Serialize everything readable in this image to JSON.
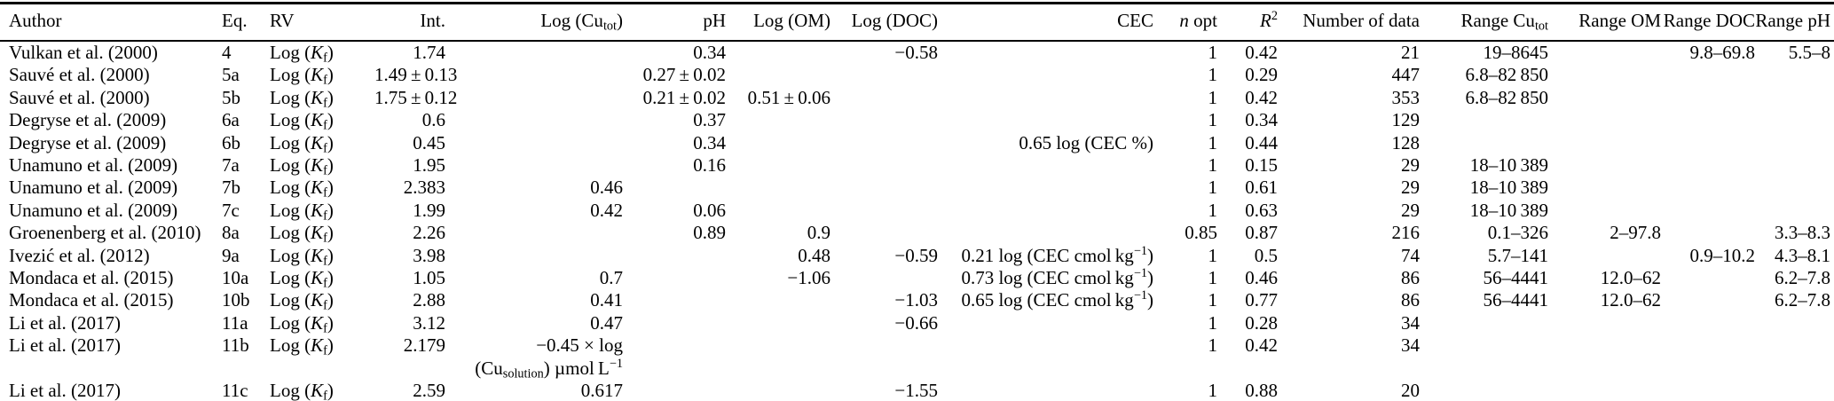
{
  "note_on_markup": "In label/cell strings: *x* = italic, ~x~ = subscript, ^x^ = superscript",
  "table": {
    "columns": [
      {
        "key": "author",
        "label": "Author"
      },
      {
        "key": "eq",
        "label": "Eq."
      },
      {
        "key": "rv",
        "label": "RV"
      },
      {
        "key": "int",
        "label": "Int."
      },
      {
        "key": "log_cutot",
        "label": "Log (Cu~tot~)"
      },
      {
        "key": "ph",
        "label": "pH"
      },
      {
        "key": "log_om",
        "label": "Log (OM)"
      },
      {
        "key": "log_doc",
        "label": "Log (DOC)"
      },
      {
        "key": "cec",
        "label": "CEC"
      },
      {
        "key": "n_opt",
        "label": "*n* opt"
      },
      {
        "key": "r2",
        "label": "*R*^2^"
      },
      {
        "key": "n_data",
        "label": "Number of data"
      },
      {
        "key": "range_cutot",
        "label": "Range Cu~tot~"
      },
      {
        "key": "range_om",
        "label": "Range OM"
      },
      {
        "key": "range_doc",
        "label": "Range DOC"
      },
      {
        "key": "range_ph",
        "label": "Range pH"
      }
    ],
    "rows": [
      {
        "cells": [
          "Vulkan et al. (2000)",
          "4",
          "Log (*K*~f~)",
          "1.74",
          "",
          "0.34",
          "",
          "−0.58",
          "",
          "1",
          "0.42",
          "21",
          "19–8645",
          "",
          "9.8–69.8",
          "5.5–8"
        ]
      },
      {
        "cells": [
          "Sauvé et al. (2000)",
          "5a",
          "Log (*K*~f~)",
          "1.49 ± 0.13",
          "",
          "0.27 ± 0.02",
          "",
          "",
          "",
          "1",
          "0.29",
          "447",
          "6.8–82 850",
          "",
          "",
          ""
        ]
      },
      {
        "cells": [
          "Sauvé et al. (2000)",
          "5b",
          "Log (*K*~f~)",
          "1.75 ± 0.12",
          "",
          "0.21 ± 0.02",
          "0.51 ± 0.06",
          "",
          "",
          "1",
          "0.42",
          "353",
          "6.8–82 850",
          "",
          "",
          ""
        ]
      },
      {
        "cells": [
          "Degryse et al. (2009)",
          "6a",
          "Log (*K*~f~)",
          "0.6",
          "",
          "0.37",
          "",
          "",
          "",
          "1",
          "0.34",
          "129",
          "",
          "",
          "",
          ""
        ]
      },
      {
        "cells": [
          "Degryse et al. (2009)",
          "6b",
          "Log (*K*~f~)",
          "0.45",
          "",
          "0.34",
          "",
          "",
          "0.65 log (CEC %)",
          "1",
          "0.44",
          "128",
          "",
          "",
          "",
          ""
        ]
      },
      {
        "cells": [
          "Unamuno et al. (2009)",
          "7a",
          "Log (*K*~f~)",
          "1.95",
          "",
          "0.16",
          "",
          "",
          "",
          "1",
          "0.15",
          "29",
          "18–10 389",
          "",
          "",
          ""
        ]
      },
      {
        "cells": [
          "Unamuno et al. (2009)",
          "7b",
          "Log (*K*~f~)",
          "2.383",
          "0.46",
          "",
          "",
          "",
          "",
          "1",
          "0.61",
          "29",
          "18–10 389",
          "",
          "",
          ""
        ]
      },
      {
        "cells": [
          "Unamuno et al. (2009)",
          "7c",
          "Log (*K*~f~)",
          "1.99",
          "0.42",
          "0.06",
          "",
          "",
          "",
          "1",
          "0.63",
          "29",
          "18–10 389",
          "",
          "",
          ""
        ]
      },
      {
        "cells": [
          "Groenenberg et al. (2010)",
          "8a",
          "Log (*K*~f~)",
          "2.26",
          "",
          "0.89",
          "0.9",
          "",
          "",
          "0.85",
          "0.87",
          "216",
          "0.1–326",
          "2–97.8",
          "",
          "3.3–8.3"
        ]
      },
      {
        "cells": [
          "Ivezić et al. (2012)",
          "9a",
          "Log (*K*~f~)",
          "3.98",
          "",
          "",
          "0.48",
          "−0.59",
          "0.21 log (CEC cmol kg^−1^)",
          "1",
          "0.5",
          "74",
          "5.7–141",
          "",
          "0.9–10.2",
          "4.3–8.1"
        ]
      },
      {
        "cells": [
          "Mondaca et al. (2015)",
          "10a",
          "Log (*K*~f~)",
          "1.05",
          "0.7",
          "",
          "−1.06",
          "",
          "0.73 log (CEC cmol kg^−1^)",
          "1",
          "0.46",
          "86",
          "56–4441",
          "12.0–62",
          "",
          "6.2–7.8"
        ]
      },
      {
        "cells": [
          "Mondaca et al. (2015)",
          "10b",
          "Log (*K*~f~)",
          "2.88",
          "0.41",
          "",
          "",
          "−1.03",
          "0.65 log (CEC cmol kg^−1^)",
          "1",
          "0.77",
          "86",
          "56–4441",
          "12.0–62",
          "",
          "6.2–7.8"
        ]
      },
      {
        "cells": [
          "Li et al. (2017)",
          "11a",
          "Log (*K*~f~)",
          "3.12",
          "0.47",
          "",
          "",
          "−0.66",
          "",
          "1",
          "0.28",
          "34",
          "",
          "",
          "",
          ""
        ]
      },
      {
        "cells": [
          "Li et al. (2017)",
          "11b",
          "Log (*K*~f~)",
          "2.179",
          "−0.45 × log",
          "",
          "",
          "",
          "",
          "1",
          "0.42",
          "34",
          "",
          "",
          "",
          ""
        ]
      },
      {
        "cells": [
          "",
          "",
          "",
          "",
          "(Cu~solution~) µmol L^−1^",
          "",
          "",
          "",
          "",
          "",
          "",
          "",
          "",
          "",
          "",
          ""
        ]
      },
      {
        "cells": [
          "Li et al. (2017)",
          "11c",
          "Log (*K*~f~)",
          "2.59",
          "0.617",
          "",
          "",
          "−1.55",
          "",
          "1",
          "0.88",
          "20",
          "",
          "",
          "",
          ""
        ]
      }
    ]
  }
}
